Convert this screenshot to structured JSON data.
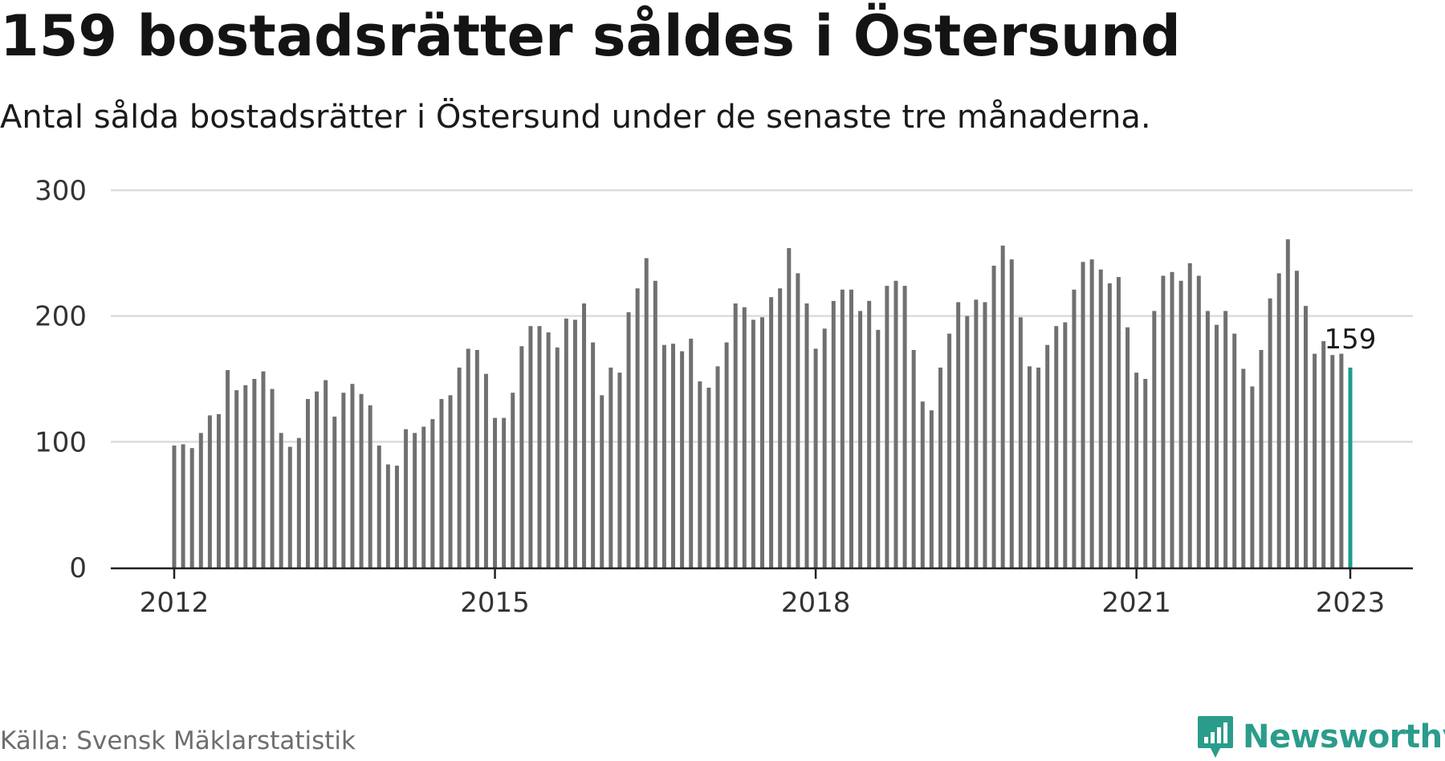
{
  "title": "159 bostadsrätter såldes i Östersund",
  "subtitle": "Antal sålda bostadsrätter i Östersund under de senaste tre månaderna.",
  "source": "Källa: Svensk Mäklarstatistik",
  "brand": {
    "name": "Newsworthy",
    "color": "#2b9c8c",
    "icon": "newsworthy-logo-icon"
  },
  "chart_data": {
    "type": "bar",
    "title": "159 bostadsrätter såldes i Östersund",
    "subtitle": "Antal sålda bostadsrätter i Östersund under de senaste tre månaderna.",
    "xlabel": "",
    "ylabel": "",
    "x_start": "2012-01",
    "x_interval": "month",
    "x_ticks": [
      "2012",
      "2015",
      "2018",
      "2021",
      "2023"
    ],
    "y_ticks": [
      0,
      100,
      200,
      300
    ],
    "ylim": [
      0,
      300
    ],
    "grid": "horizontal",
    "bar_color": "#707070",
    "highlight_color": "#1a9e8c",
    "annotation": {
      "text": "159",
      "target": "last"
    },
    "values": [
      97,
      98,
      95,
      107,
      121,
      122,
      157,
      141,
      145,
      150,
      156,
      142,
      107,
      96,
      103,
      134,
      140,
      149,
      120,
      139,
      146,
      138,
      129,
      97,
      82,
      81,
      110,
      107,
      112,
      118,
      134,
      137,
      159,
      174,
      173,
      154,
      119,
      119,
      139,
      176,
      192,
      192,
      187,
      175,
      198,
      197,
      210,
      179,
      137,
      159,
      155,
      203,
      222,
      246,
      228,
      177,
      178,
      172,
      182,
      148,
      143,
      160,
      179,
      210,
      207,
      197,
      199,
      215,
      222,
      254,
      234,
      210,
      174,
      190,
      212,
      221,
      221,
      204,
      212,
      189,
      224,
      228,
      224,
      173,
      132,
      125,
      159,
      186,
      211,
      200,
      213,
      211,
      240,
      256,
      245,
      199,
      160,
      159,
      177,
      192,
      195,
      221,
      243,
      245,
      237,
      226,
      231,
      191,
      155,
      150,
      204,
      232,
      235,
      228,
      242,
      232,
      204,
      193,
      204,
      186,
      158,
      144,
      173,
      214,
      234,
      261,
      236,
      208,
      170,
      180,
      169,
      170,
      159
    ]
  }
}
